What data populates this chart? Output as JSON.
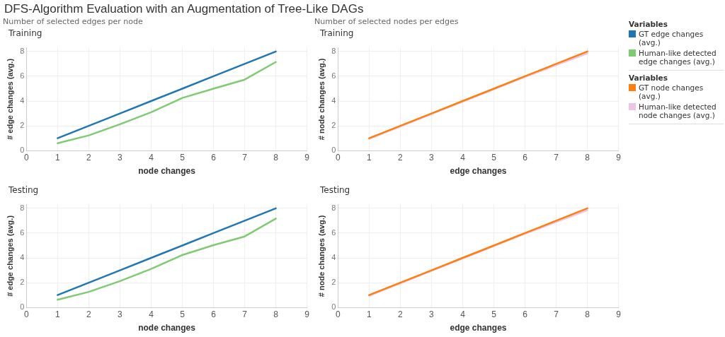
{
  "chart_data": [
    {
      "type": "line",
      "title": "Training",
      "subtitle": "Number of selected edges per node",
      "annotations": [
        "DFS-Algorithm Evaluation with an Augmentation of Tree-Like DAGs"
      ],
      "xlabel": "node changes",
      "ylabel": "# edge changes (avg.)",
      "x": [
        1,
        2,
        3,
        4,
        5,
        6,
        7,
        8
      ],
      "xlim": [
        0,
        9
      ],
      "xticks": [
        0,
        1,
        2,
        3,
        4,
        5,
        6,
        7,
        8,
        9
      ],
      "ylim": [
        0,
        8.3
      ],
      "yticks": [
        0,
        2,
        4,
        6,
        8
      ],
      "grid": true,
      "legend": "right",
      "legend_title": "Variables",
      "marker": "none",
      "series": [
        {
          "name": "GT edge changes (avg.)",
          "color": "#1f77b4",
          "values": [
            1,
            2,
            3,
            4,
            5,
            6,
            7,
            8
          ]
        },
        {
          "name": "Human-like detected edge changes (avg.)",
          "color": "#7fcb72",
          "values": [
            0.6,
            1.23,
            2.13,
            3.1,
            4.25,
            5.0,
            5.73,
            7.15
          ]
        }
      ]
    },
    {
      "type": "line",
      "title": "Training",
      "subtitle": "Number of selected nodes per edges",
      "xlabel": "edge changes",
      "ylabel": "# node changes (avg.)",
      "x": [
        1,
        2,
        3,
        4,
        5,
        6,
        7,
        8
      ],
      "xlim": [
        0,
        9
      ],
      "xticks": [
        0,
        1,
        2,
        3,
        4,
        5,
        6,
        7,
        8,
        9
      ],
      "ylim": [
        0,
        8.3
      ],
      "yticks": [
        0,
        2,
        4,
        6,
        8
      ],
      "grid": true,
      "legend": "right",
      "legend_title": "Variables",
      "marker": "none",
      "series": [
        {
          "name": "GT node changes (avg.)",
          "color": "#ff7f0e",
          "values": [
            1,
            2,
            3,
            4,
            5,
            6,
            7,
            8
          ]
        },
        {
          "name": "Human-like detected node changes (avg.)",
          "color": "#ecc5e6",
          "values": [
            0.95,
            1.95,
            2.95,
            3.95,
            4.95,
            5.95,
            6.9,
            7.85
          ]
        }
      ]
    },
    {
      "type": "line",
      "title": "Testing",
      "xlabel": "node changes",
      "ylabel": "# edge changes (avg.)",
      "x": [
        1,
        2,
        3,
        4,
        5,
        6,
        7,
        8
      ],
      "xlim": [
        0,
        9
      ],
      "xticks": [
        0,
        1,
        2,
        3,
        4,
        5,
        6,
        7,
        8,
        9
      ],
      "ylim": [
        0,
        8.3
      ],
      "yticks": [
        0,
        2,
        4,
        6,
        8
      ],
      "grid": true,
      "marker": "none",
      "series": [
        {
          "color": "#1f77b4",
          "values": [
            1,
            2,
            3,
            4,
            5,
            6,
            7,
            8
          ]
        },
        {
          "color": "#7fcb72",
          "values": [
            0.62,
            1.26,
            2.13,
            3.11,
            4.23,
            5.03,
            5.73,
            7.17
          ]
        }
      ]
    },
    {
      "type": "line",
      "title": "Testing",
      "xlabel": "edge changes",
      "ylabel": "# node changes (avg.)",
      "x": [
        1,
        2,
        3,
        4,
        5,
        6,
        7,
        8
      ],
      "xlim": [
        0,
        9
      ],
      "xticks": [
        0,
        1,
        2,
        3,
        4,
        5,
        6,
        7,
        8,
        9
      ],
      "ylim": [
        0,
        8.3
      ],
      "yticks": [
        0,
        2,
        4,
        6,
        8
      ],
      "grid": true,
      "marker": "none",
      "series": [
        {
          "color": "#ff7f0e",
          "values": [
            1,
            2,
            3,
            4,
            5,
            6,
            7,
            8
          ]
        },
        {
          "color": "#ecc5e6",
          "values": [
            0.95,
            1.95,
            2.95,
            3.95,
            4.95,
            5.95,
            6.9,
            7.85
          ]
        }
      ]
    }
  ]
}
